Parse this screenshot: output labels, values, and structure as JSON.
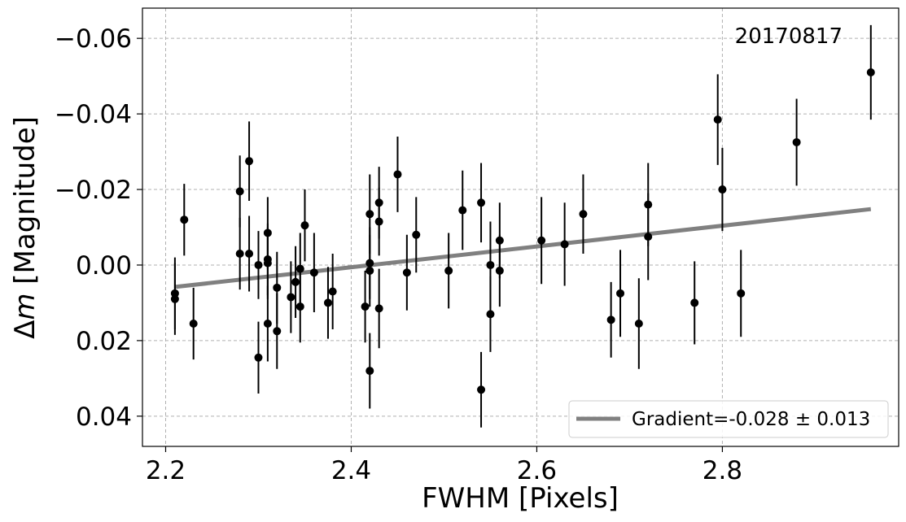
{
  "chart_data": {
    "type": "scatter",
    "xlabel_main": "FWHM [Pixels]",
    "ylabel_delta": "Δ",
    "ylabel_m": "m",
    "ylabel_rest": " [Magnitude]",
    "annotation": "20170817",
    "xlim": [
      2.175,
      2.99
    ],
    "ylim": [
      0.048,
      -0.068
    ],
    "y_inverted": true,
    "grid": true,
    "legend_placement": "lower-right",
    "xticks": [
      2.2,
      2.4,
      2.6,
      2.8
    ],
    "xtick_labels": [
      "2.2",
      "2.4",
      "2.6",
      "2.8"
    ],
    "yticks": [
      -0.06,
      -0.04,
      -0.02,
      0.0,
      0.02,
      0.04
    ],
    "ytick_labels": [
      "−0.06",
      "−0.04",
      "−0.02",
      "0.00",
      "0.02",
      "0.04"
    ],
    "fit_line": {
      "label": "Gradient=-0.028 ± 0.013",
      "x": [
        2.21,
        2.96
      ],
      "y": [
        0.0058,
        -0.0148
      ],
      "color": "#808080"
    },
    "marker_color": "#000000",
    "points": [
      {
        "x": 2.21,
        "y": 0.0075,
        "err": 0.0095
      },
      {
        "x": 2.21,
        "y": 0.009,
        "err": 0.0095
      },
      {
        "x": 2.22,
        "y": -0.012,
        "err": 0.0095
      },
      {
        "x": 2.23,
        "y": 0.0155,
        "err": 0.0095
      },
      {
        "x": 2.28,
        "y": -0.0195,
        "err": 0.0095
      },
      {
        "x": 2.28,
        "y": -0.003,
        "err": 0.0095
      },
      {
        "x": 2.29,
        "y": -0.0275,
        "err": 0.0105
      },
      {
        "x": 2.29,
        "y": -0.003,
        "err": 0.01
      },
      {
        "x": 2.3,
        "y": 0.0,
        "err": 0.009
      },
      {
        "x": 2.3,
        "y": 0.0245,
        "err": 0.0095
      },
      {
        "x": 2.31,
        "y": -0.0085,
        "err": 0.0095
      },
      {
        "x": 2.31,
        "y": -0.0015,
        "err": 0.0095
      },
      {
        "x": 2.31,
        "y": -0.0005,
        "err": 0.0095
      },
      {
        "x": 2.31,
        "y": 0.0155,
        "err": 0.01
      },
      {
        "x": 2.32,
        "y": 0.006,
        "err": 0.0095
      },
      {
        "x": 2.32,
        "y": 0.0175,
        "err": 0.01
      },
      {
        "x": 2.335,
        "y": 0.0085,
        "err": 0.0095
      },
      {
        "x": 2.34,
        "y": 0.0045,
        "err": 0.0095
      },
      {
        "x": 2.345,
        "y": 0.001,
        "err": 0.0095
      },
      {
        "x": 2.345,
        "y": 0.011,
        "err": 0.0095
      },
      {
        "x": 2.35,
        "y": -0.0105,
        "err": 0.0095
      },
      {
        "x": 2.36,
        "y": 0.002,
        "err": 0.0105
      },
      {
        "x": 2.375,
        "y": 0.01,
        "err": 0.0095
      },
      {
        "x": 2.38,
        "y": 0.007,
        "err": 0.01
      },
      {
        "x": 2.415,
        "y": 0.011,
        "err": 0.0095
      },
      {
        "x": 2.42,
        "y": -0.0135,
        "err": 0.0105
      },
      {
        "x": 2.42,
        "y": -0.0005,
        "err": 0.0095
      },
      {
        "x": 2.42,
        "y": 0.0015,
        "err": 0.0095
      },
      {
        "x": 2.42,
        "y": 0.028,
        "err": 0.01
      },
      {
        "x": 2.43,
        "y": -0.0165,
        "err": 0.0095
      },
      {
        "x": 2.43,
        "y": -0.0115,
        "err": 0.009
      },
      {
        "x": 2.43,
        "y": 0.0115,
        "err": 0.0105
      },
      {
        "x": 2.45,
        "y": -0.024,
        "err": 0.01
      },
      {
        "x": 2.46,
        "y": 0.002,
        "err": 0.01
      },
      {
        "x": 2.47,
        "y": -0.008,
        "err": 0.01
      },
      {
        "x": 2.505,
        "y": 0.0015,
        "err": 0.01
      },
      {
        "x": 2.52,
        "y": -0.0145,
        "err": 0.0105
      },
      {
        "x": 2.54,
        "y": -0.0165,
        "err": 0.0105
      },
      {
        "x": 2.54,
        "y": 0.033,
        "err": 0.01
      },
      {
        "x": 2.55,
        "y": 0.0,
        "err": 0.0115
      },
      {
        "x": 2.55,
        "y": 0.013,
        "err": 0.01
      },
      {
        "x": 2.56,
        "y": -0.0065,
        "err": 0.01
      },
      {
        "x": 2.56,
        "y": 0.0015,
        "err": 0.0095
      },
      {
        "x": 2.605,
        "y": -0.0065,
        "err": 0.0115
      },
      {
        "x": 2.63,
        "y": -0.0055,
        "err": 0.011
      },
      {
        "x": 2.65,
        "y": -0.0135,
        "err": 0.0105
      },
      {
        "x": 2.68,
        "y": 0.0145,
        "err": 0.01
      },
      {
        "x": 2.69,
        "y": 0.0075,
        "err": 0.0115
      },
      {
        "x": 2.71,
        "y": 0.0155,
        "err": 0.012
      },
      {
        "x": 2.72,
        "y": -0.016,
        "err": 0.011
      },
      {
        "x": 2.72,
        "y": -0.0075,
        "err": 0.0115
      },
      {
        "x": 2.77,
        "y": 0.01,
        "err": 0.011
      },
      {
        "x": 2.795,
        "y": -0.0385,
        "err": 0.012
      },
      {
        "x": 2.8,
        "y": -0.02,
        "err": 0.011
      },
      {
        "x": 2.82,
        "y": 0.0075,
        "err": 0.0115
      },
      {
        "x": 2.88,
        "y": -0.0325,
        "err": 0.0115
      },
      {
        "x": 2.96,
        "y": -0.051,
        "err": 0.0125
      }
    ]
  }
}
